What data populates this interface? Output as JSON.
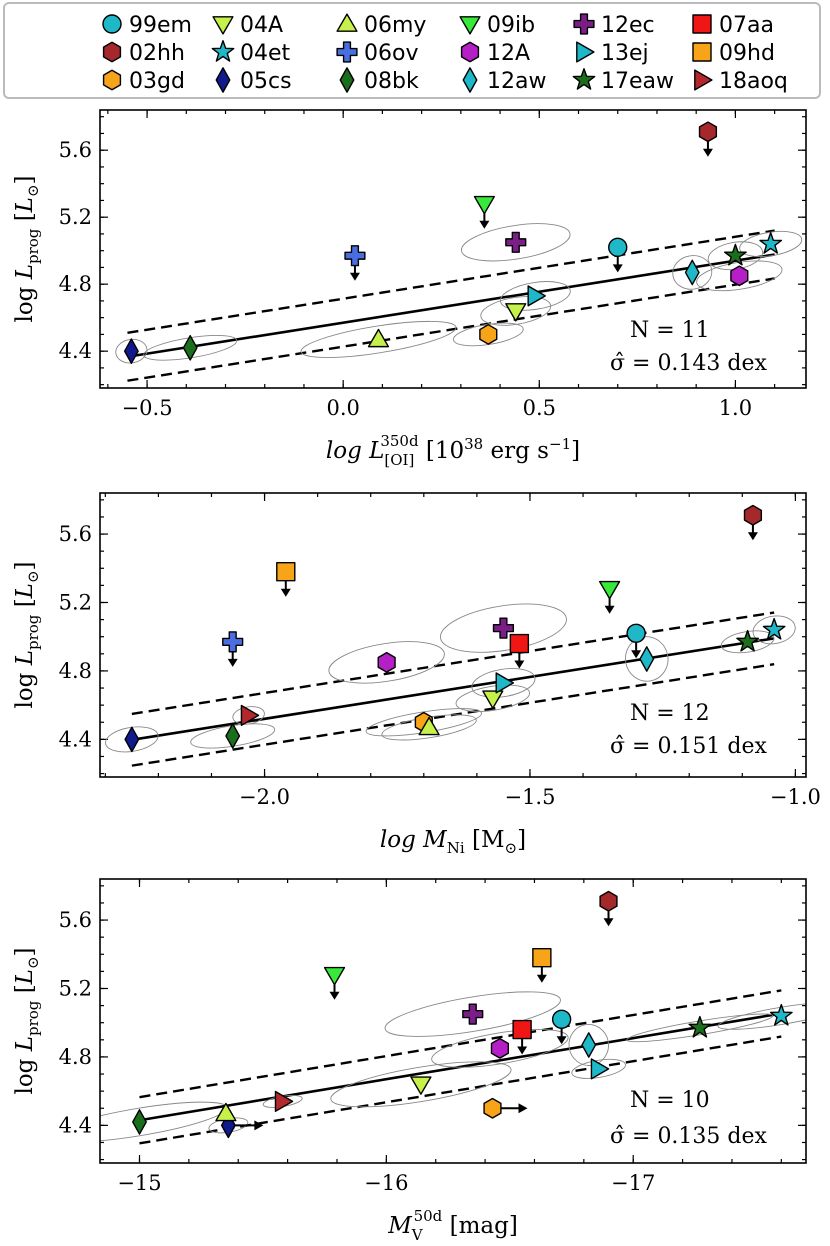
{
  "legend": [
    {
      "label": "99em",
      "shape": "circle",
      "color": "#1fb8c9"
    },
    {
      "label": "04A",
      "shape": "triangle-down",
      "color": "#c6f14a"
    },
    {
      "label": "06my",
      "shape": "triangle-up",
      "color": "#c6f14a"
    },
    {
      "label": "09ib",
      "shape": "triangle-down",
      "color": "#38e83a"
    },
    {
      "label": "12ec",
      "shape": "plus",
      "color": "#7b1e88"
    },
    {
      "label": "07aa",
      "shape": "square",
      "color": "#f01616"
    },
    {
      "label": "02hh",
      "shape": "hexagon",
      "color": "#a5282b"
    },
    {
      "label": "04et",
      "shape": "star",
      "color": "#1fb8c9"
    },
    {
      "label": "06ov",
      "shape": "plus",
      "color": "#4a6ee0"
    },
    {
      "label": "12A",
      "shape": "hexagon",
      "color": "#b41fc6"
    },
    {
      "label": "13ej",
      "shape": "triangle-right",
      "color": "#1fb8c9"
    },
    {
      "label": "09hd",
      "shape": "square",
      "color": "#f8a418"
    },
    {
      "label": "03gd",
      "shape": "hexagon",
      "color": "#f8a418"
    },
    {
      "label": "05cs",
      "shape": "diamond",
      "color": "#101a8c"
    },
    {
      "label": "08bk",
      "shape": "diamond",
      "color": "#1b6e1b"
    },
    {
      "label": "12aw",
      "shape": "diamond",
      "color": "#1fb8c9"
    },
    {
      "label": "17eaw",
      "shape": "star",
      "color": "#1b6e1b"
    },
    {
      "label": "18aoq",
      "shape": "triangle-right",
      "color": "#b3282d"
    }
  ],
  "chart_data": [
    {
      "type": "scatter",
      "xlabel": "log L_[OI]^350d [10^38 erg s^-1]",
      "xlabel_parts": {
        "main": "log L",
        "sup": "350d",
        "sub": "[OI]",
        "unit": "[10",
        "unit_sup": "38",
        "unit_rest": " erg s",
        "unit_sup2": "−1",
        "unit_end": "]"
      },
      "ylabel": "log L_prog [L_⊙]",
      "xlim": [
        -0.62,
        1.18
      ],
      "ylim": [
        4.18,
        5.84
      ],
      "xticks": [
        -0.5,
        0.0,
        0.5,
        1.0
      ],
      "xtick_labels": [
        "−0.5",
        "0.0",
        "0.5",
        "1.0"
      ],
      "yticks": [
        4.4,
        4.8,
        5.2,
        5.6
      ],
      "ytick_labels": [
        "4.4",
        "4.8",
        "5.2",
        "5.6"
      ],
      "fit": {
        "slope": 0.37,
        "intercept": 4.57,
        "scatter": 0.143
      },
      "fit_range": [
        -0.55,
        1.1
      ],
      "annotation_n": "N = 11",
      "annotation_sigma": "σ̂ = 0.143 dex",
      "points": [
        {
          "label": "99em",
          "x": 0.7,
          "y": 5.02,
          "upper": true
        },
        {
          "label": "02hh",
          "x": 0.93,
          "y": 5.71,
          "upper": true
        },
        {
          "label": "03gd",
          "x": 0.37,
          "y": 4.5
        },
        {
          "label": "04A",
          "x": 0.44,
          "y": 4.64
        },
        {
          "label": "04et",
          "x": 1.09,
          "y": 5.04
        },
        {
          "label": "05cs",
          "x": -0.54,
          "y": 4.4
        },
        {
          "label": "06my",
          "x": 0.09,
          "y": 4.47
        },
        {
          "label": "06ov",
          "x": 0.03,
          "y": 4.97,
          "upper": true
        },
        {
          "label": "08bk",
          "x": -0.39,
          "y": 4.42
        },
        {
          "label": "09ib",
          "x": 0.36,
          "y": 5.28,
          "upper": true
        },
        {
          "label": "12A",
          "x": 1.01,
          "y": 4.85
        },
        {
          "label": "12aw",
          "x": 0.89,
          "y": 4.87
        },
        {
          "label": "12ec",
          "x": 0.44,
          "y": 5.05
        },
        {
          "label": "13ej",
          "x": 0.49,
          "y": 4.73
        },
        {
          "label": "17eaw",
          "x": 1.0,
          "y": 4.97
        }
      ],
      "ellipses": [
        {
          "label": "05cs",
          "rx": 0.04,
          "ry": 0.07
        },
        {
          "label": "08bk",
          "rx": 0.12,
          "ry": 0.06
        },
        {
          "label": "06my",
          "rx": 0.2,
          "ry": 0.08
        },
        {
          "label": "03gd",
          "rx": 0.09,
          "ry": 0.06
        },
        {
          "label": "04A",
          "rx": 0.09,
          "ry": 0.08
        },
        {
          "label": "13ej",
          "rx": 0.09,
          "ry": 0.08
        },
        {
          "label": "12ec",
          "rx": 0.14,
          "ry": 0.1
        },
        {
          "label": "12A",
          "rx": 0.11,
          "ry": 0.08
        },
        {
          "label": "12aw",
          "rx": 0.05,
          "ry": 0.1
        },
        {
          "label": "17eaw",
          "rx": 0.07,
          "ry": 0.08
        },
        {
          "label": "04et",
          "rx": 0.08,
          "ry": 0.07
        }
      ]
    },
    {
      "type": "scatter",
      "xlabel": "log M_Ni [M_⊙]",
      "xlabel_parts": {
        "main": "log M",
        "sub": "Ni",
        "unit": "[M",
        "unit_sub": "⊙",
        "unit_end": "]"
      },
      "ylabel": "log L_prog [L_⊙]",
      "xlim": [
        -2.31,
        -0.98
      ],
      "ylim": [
        4.18,
        5.84
      ],
      "xticks": [
        -2.0,
        -1.5,
        -1.0
      ],
      "xtick_labels": [
        "−2.0",
        "−1.5",
        "−1.0"
      ],
      "yticks": [
        4.4,
        4.8,
        5.2,
        5.6
      ],
      "ytick_labels": [
        "4.4",
        "4.8",
        "5.2",
        "5.6"
      ],
      "fit": {
        "slope": 0.49,
        "intercept": 5.5,
        "scatter": 0.151
      },
      "fit_range": [
        -2.25,
        -1.04
      ],
      "annotation_n": "N = 12",
      "annotation_sigma": "σ̂ = 0.151 dex",
      "points": [
        {
          "label": "99em",
          "x": -1.3,
          "y": 5.02,
          "upper": true
        },
        {
          "label": "02hh",
          "x": -1.08,
          "y": 5.71,
          "upper": true
        },
        {
          "label": "03gd",
          "x": -1.7,
          "y": 4.5
        },
        {
          "label": "04A",
          "x": -1.57,
          "y": 4.64
        },
        {
          "label": "04et",
          "x": -1.04,
          "y": 5.04
        },
        {
          "label": "05cs",
          "x": -2.25,
          "y": 4.4
        },
        {
          "label": "06my",
          "x": -1.69,
          "y": 4.47
        },
        {
          "label": "06ov",
          "x": -2.06,
          "y": 4.97,
          "upper": true
        },
        {
          "label": "07aa",
          "x": -1.52,
          "y": 4.96,
          "upper": true
        },
        {
          "label": "08bk",
          "x": -2.06,
          "y": 4.42
        },
        {
          "label": "09hd",
          "x": -1.96,
          "y": 5.38,
          "upper": true
        },
        {
          "label": "09ib",
          "x": -1.35,
          "y": 5.28,
          "upper": true
        },
        {
          "label": "12A",
          "x": -1.77,
          "y": 4.85
        },
        {
          "label": "12aw",
          "x": -1.28,
          "y": 4.87
        },
        {
          "label": "12ec",
          "x": -1.55,
          "y": 5.05
        },
        {
          "label": "13ej",
          "x": -1.55,
          "y": 4.73
        },
        {
          "label": "17eaw",
          "x": -1.09,
          "y": 4.97
        },
        {
          "label": "18aoq",
          "x": -2.03,
          "y": 4.54
        }
      ],
      "ellipses": [
        {
          "label": "05cs",
          "rx": 0.05,
          "ry": 0.07
        },
        {
          "label": "08bk",
          "rx": 0.08,
          "ry": 0.06
        },
        {
          "label": "18aoq",
          "rx": 0.03,
          "ry": 0.05
        },
        {
          "label": "12A",
          "rx": 0.11,
          "ry": 0.11
        },
        {
          "label": "12ec",
          "rx": 0.12,
          "ry": 0.13
        },
        {
          "label": "03gd",
          "rx": 0.11,
          "ry": 0.06
        },
        {
          "label": "06my",
          "rx": 0.09,
          "ry": 0.06
        },
        {
          "label": "04A",
          "rx": 0.07,
          "ry": 0.07
        },
        {
          "label": "13ej",
          "rx": 0.06,
          "ry": 0.08
        },
        {
          "label": "12aw",
          "rx": 0.04,
          "ry": 0.13
        },
        {
          "label": "17eaw",
          "rx": 0.05,
          "ry": 0.06
        },
        {
          "label": "04et",
          "rx": 0.04,
          "ry": 0.08
        }
      ]
    },
    {
      "type": "scatter",
      "xlabel": "M_V^50d [mag]",
      "xlabel_parts": {
        "main": "M",
        "sup": "50d",
        "sub": "V",
        "unit": "[mag]"
      },
      "ylabel": "log L_prog [L_⊙]",
      "xlim": [
        -14.84,
        -17.7
      ],
      "ylim": [
        4.18,
        5.84
      ],
      "xticks": [
        -15,
        -16,
        -17
      ],
      "xtick_labels": [
        "−15",
        "−16",
        "−17"
      ],
      "yticks": [
        4.4,
        4.8,
        5.2,
        5.6
      ],
      "ytick_labels": [
        "4.4",
        "4.8",
        "5.2",
        "5.6"
      ],
      "fit": {
        "slope": -0.24,
        "intercept": 0.83,
        "scatter": 0.135
      },
      "fit_range": [
        -15.0,
        -17.6
      ],
      "annotation_n": "N = 10",
      "annotation_sigma": "σ̂ = 0.135 dex",
      "points": [
        {
          "label": "99em",
          "x": -16.71,
          "y": 5.02,
          "upper": true
        },
        {
          "label": "02hh",
          "x": -16.9,
          "y": 5.71,
          "upper": true
        },
        {
          "label": "03gd",
          "x": -16.43,
          "y": 4.5,
          "lower_mag": true
        },
        {
          "label": "04A",
          "x": -16.14,
          "y": 4.64
        },
        {
          "label": "04et",
          "x": -17.6,
          "y": 5.04
        },
        {
          "label": "05cs",
          "x": -15.36,
          "y": 4.4,
          "lower_mag": true
        },
        {
          "label": "06my",
          "x": -15.35,
          "y": 4.47
        },
        {
          "label": "07aa",
          "x": -16.55,
          "y": 4.96,
          "upper": true
        },
        {
          "label": "08bk",
          "x": -15.0,
          "y": 4.42
        },
        {
          "label": "09hd",
          "x": -16.63,
          "y": 5.38,
          "upper": true
        },
        {
          "label": "09ib",
          "x": -15.79,
          "y": 5.28,
          "upper": true
        },
        {
          "label": "12A",
          "x": -16.46,
          "y": 4.85
        },
        {
          "label": "12aw",
          "x": -16.82,
          "y": 4.87
        },
        {
          "label": "12ec",
          "x": -16.35,
          "y": 5.05
        },
        {
          "label": "13ej",
          "x": -16.86,
          "y": 4.73
        },
        {
          "label": "17eaw",
          "x": -17.27,
          "y": 4.97
        },
        {
          "label": "18aoq",
          "x": -15.58,
          "y": 4.54
        }
      ],
      "ellipses": [
        {
          "label": "08bk",
          "rx": 0.36,
          "ry": 0.08
        },
        {
          "label": "05cs",
          "rx": 0.08,
          "ry": 0.04
        },
        {
          "label": "18aoq",
          "rx": 0.08,
          "ry": 0.03
        },
        {
          "label": "04A",
          "rx": 0.37,
          "ry": 0.1
        },
        {
          "label": "12ec",
          "rx": 0.36,
          "ry": 0.1
        },
        {
          "label": "12A",
          "rx": 0.28,
          "ry": 0.09
        },
        {
          "label": "12aw",
          "rx": 0.08,
          "ry": 0.12
        },
        {
          "label": "13ej",
          "rx": 0.11,
          "ry": 0.05
        },
        {
          "label": "17eaw",
          "rx": 0.3,
          "ry": 0.04
        },
        {
          "label": "04et",
          "rx": 0.26,
          "ry": 0.05
        }
      ]
    }
  ]
}
